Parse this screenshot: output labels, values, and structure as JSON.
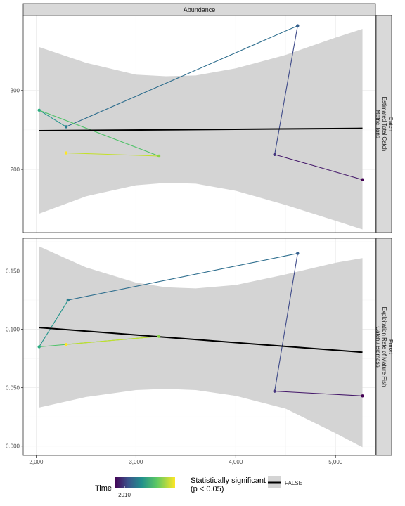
{
  "chart_data": {
    "type": "line",
    "strip_top": "Abundance",
    "legend": {
      "time_title": "Time",
      "time_tick": "2010",
      "sig_title_line1": "Statistically significant",
      "sig_title_line2": "(p < 0.05)",
      "sig_entry": "FALSE"
    },
    "x_ticks": [
      2000,
      3000,
      4000,
      5000
    ],
    "x_tick_labels": [
      "2,000",
      "3,000",
      "4,000",
      "5,000"
    ],
    "xlim": [
      1870,
      5400
    ],
    "colors": {
      "ribbon": "#d4d4d4",
      "trend": "#000000",
      "viridis": [
        "#440154",
        "#482878",
        "#3e4989",
        "#31688e",
        "#26828e",
        "#1f9e89",
        "#35b779",
        "#6ece58",
        "#b5de2b",
        "#fde725"
      ]
    },
    "panels": [
      {
        "strip_lines": [
          "Catch",
          "Estimated Total Catch",
          "Metric Tons"
        ],
        "ylim": [
          120,
          395
        ],
        "y_ticks": [
          200,
          300
        ],
        "y_tick_labels": [
          "200",
          "300"
        ],
        "x": [
          5270,
          4390,
          4620,
          2300,
          2030,
          3230,
          2300
        ],
        "y": [
          187,
          219,
          382,
          254,
          275,
          217,
          221
        ],
        "time": [
          0,
          0.15,
          0.3,
          0.42,
          0.62,
          0.82,
          1.0
        ],
        "trend": {
          "x": [
            2030,
            5270
          ],
          "y": [
            249,
            252
          ]
        },
        "ribbon": {
          "x": [
            2030,
            2500,
            3000,
            3300,
            3600,
            4000,
            4500,
            5000,
            5270
          ],
          "upper": [
            355,
            335,
            320,
            318,
            319,
            328,
            345,
            367,
            378
          ],
          "lower": [
            144,
            166,
            180,
            183,
            182,
            173,
            155,
            135,
            124
          ]
        }
      },
      {
        "strip_lines": [
          "Fmort",
          "Exploitation Rate of Mature Fish",
          "Catch / Biomass"
        ],
        "ylim": [
          -0.008,
          0.178
        ],
        "y_ticks": [
          0.0,
          0.05,
          0.1,
          0.15
        ],
        "y_tick_labels": [
          "0.000",
          "0.050",
          "0.100",
          "0.150"
        ],
        "x": [
          5270,
          4390,
          4620,
          2320,
          2030,
          3230,
          2300
        ],
        "y": [
          0.043,
          0.047,
          0.165,
          0.125,
          0.085,
          0.094,
          0.087
        ],
        "time": [
          0,
          0.15,
          0.3,
          0.42,
          0.62,
          0.82,
          1.0
        ],
        "trend": {
          "x": [
            2030,
            5270
          ],
          "y": [
            0.1015,
            0.0803
          ]
        },
        "ribbon": {
          "x": [
            2030,
            2500,
            3000,
            3300,
            3600,
            4000,
            4500,
            5000,
            5270
          ],
          "upper": [
            0.171,
            0.153,
            0.14,
            0.136,
            0.135,
            0.138,
            0.147,
            0.157,
            0.161
          ],
          "lower": [
            0.033,
            0.042,
            0.048,
            0.049,
            0.048,
            0.043,
            0.032,
            0.011,
            -0.001
          ]
        }
      }
    ]
  }
}
